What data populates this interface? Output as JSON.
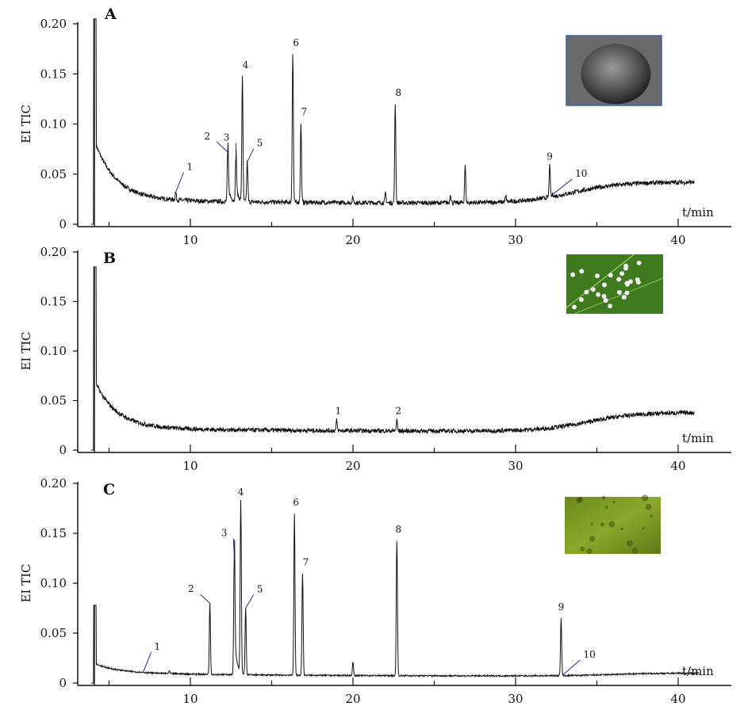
{
  "chart_data": [
    {
      "type": "line",
      "title": "A",
      "ylabel": "EI TIC",
      "xlabel": "t/min",
      "xlim": [
        3.2,
        43
      ],
      "ylim": [
        0,
        0.2
      ],
      "xticks": [
        "10",
        "20",
        "30",
        "40"
      ],
      "yticks": [
        "0",
        "0.05",
        "0.10",
        "0.15",
        "0.20"
      ],
      "inset": "scanning electron micrograph of egg",
      "solvent_peak": {
        "t": 4.1,
        "height": 0.205
      },
      "baseline": {
        "start": 0.075,
        "mid": 0.021,
        "hump_center": 37.5,
        "hump_height": 0.042,
        "end": 0.041
      },
      "end_time": 41,
      "peaks": [
        {
          "label": "1",
          "t": 9.1,
          "height": 0.032
        },
        {
          "label": "2",
          "t": 12.3,
          "height": 0.072
        },
        {
          "label": "3",
          "t": 12.8,
          "height": 0.066
        },
        {
          "label": "4",
          "t": 13.2,
          "height": 0.148
        },
        {
          "label": "5",
          "t": 13.5,
          "height": 0.062
        },
        {
          "label": "6",
          "t": 16.3,
          "height": 0.17
        },
        {
          "label": "7",
          "t": 16.8,
          "height": 0.101
        },
        {
          "label": "8",
          "t": 22.6,
          "height": 0.12
        },
        {
          "label": "9",
          "t": 32.1,
          "height": 0.058
        },
        {
          "label": "10",
          "t": 32.3,
          "height": 0.03
        },
        {
          "label": "",
          "t": 20.0,
          "height": 0.027
        },
        {
          "label": "",
          "t": 22.0,
          "height": 0.031
        },
        {
          "label": "",
          "t": 26.0,
          "height": 0.03
        },
        {
          "label": "",
          "t": 26.9,
          "height": 0.058
        },
        {
          "label": "",
          "t": 29.4,
          "height": 0.028
        }
      ]
    },
    {
      "type": "line",
      "title": "B",
      "ylabel": "EI TIC",
      "xlabel": "t/min",
      "xlim": [
        3.2,
        43
      ],
      "ylim": [
        0,
        0.2
      ],
      "xticks": [
        "10",
        "20",
        "30",
        "40"
      ],
      "yticks": [
        "0",
        "0.05",
        "0.10",
        "0.15",
        "0.20"
      ],
      "inset": "eggs on green leaf",
      "solvent_peak": {
        "t": 4.1,
        "height": 0.185
      },
      "baseline": {
        "start": 0.063,
        "mid": 0.019,
        "hump_center": 38.5,
        "hump_height": 0.038,
        "end": 0.036
      },
      "end_time": 41,
      "peaks": [
        {
          "label": "1",
          "t": 19.0,
          "height": 0.03
        },
        {
          "label": "2",
          "t": 22.7,
          "height": 0.03
        }
      ]
    },
    {
      "type": "line",
      "title": "C",
      "ylabel": "EI TIC",
      "xlabel": "t/min",
      "xlim": [
        3.2,
        43
      ],
      "ylim": [
        0,
        0.2
      ],
      "xticks": [
        "10",
        "20",
        "30",
        "40"
      ],
      "yticks": [
        "0",
        "0.05",
        "0.10",
        "0.15",
        "0.20"
      ],
      "inset": "green leaf surface",
      "solvent_peak": {
        "t": 4.1,
        "height": 0.078
      },
      "baseline": {
        "start": 0.015,
        "mid": 0.007,
        "hump_center": 40,
        "hump_height": 0.01,
        "end": 0.01
      },
      "end_time": 41.3,
      "peaks": [
        {
          "label": "1",
          "t": 7.1,
          "height": 0.011
        },
        {
          "label": "2",
          "t": 11.2,
          "height": 0.08
        },
        {
          "label": "3",
          "t": 12.7,
          "height": 0.125
        },
        {
          "label": "4",
          "t": 13.1,
          "height": 0.18
        },
        {
          "label": "5",
          "t": 13.4,
          "height": 0.075
        },
        {
          "label": "6",
          "t": 16.4,
          "height": 0.17
        },
        {
          "label": "7",
          "t": 16.9,
          "height": 0.11
        },
        {
          "label": "8",
          "t": 22.7,
          "height": 0.143
        },
        {
          "label": "9",
          "t": 32.8,
          "height": 0.065
        },
        {
          "label": "10",
          "t": 32.9,
          "height": 0.008
        },
        {
          "label": "",
          "t": 5.9,
          "height": 0.013
        },
        {
          "label": "",
          "t": 8.7,
          "height": 0.012
        },
        {
          "label": "",
          "t": 20.0,
          "height": 0.021
        }
      ]
    }
  ]
}
